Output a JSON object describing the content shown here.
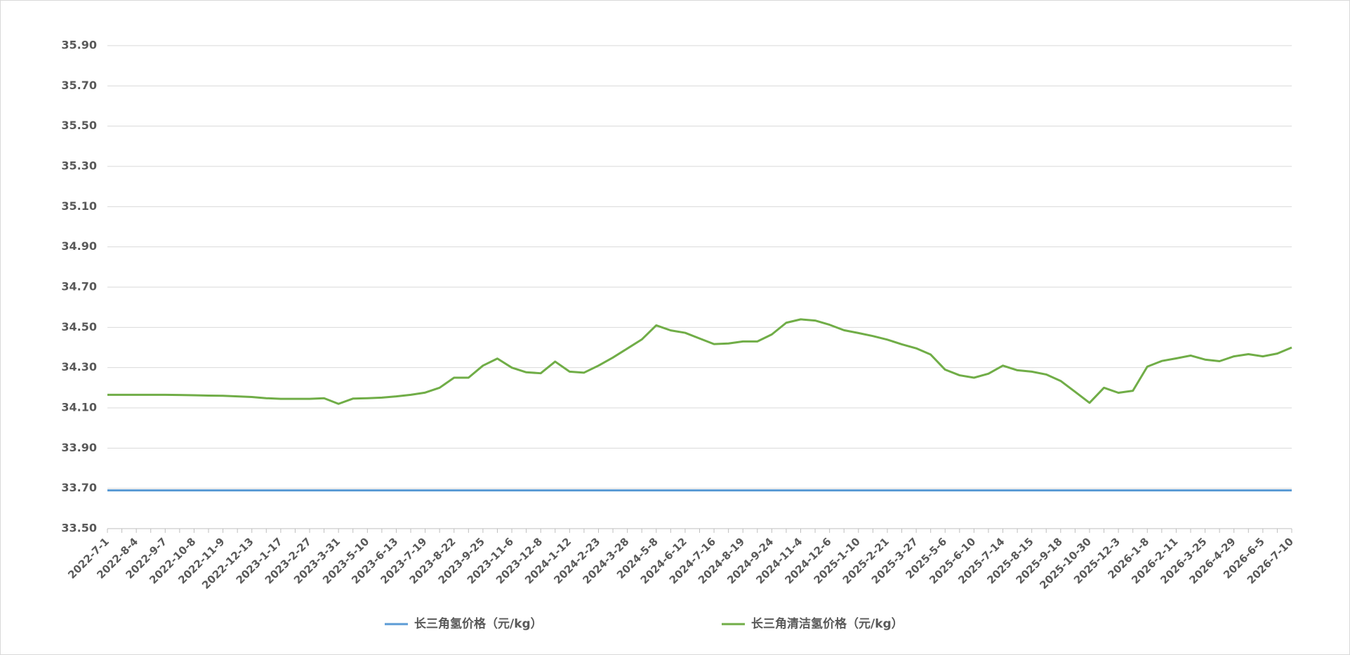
{
  "chart_data": {
    "type": "line",
    "categories": [
      "2022-7-1",
      null,
      "2022-8-4",
      null,
      "2022-9-7",
      null,
      "2022-10-8",
      null,
      "2022-11-9",
      null,
      "2022-12-13",
      null,
      "2023-1-17",
      null,
      "2023-2-27",
      null,
      "2023-3-31",
      null,
      "2023-5-10",
      null,
      "2023-6-13",
      null,
      "2023-7-19",
      null,
      "2023-8-22",
      null,
      "2023-9-25",
      null,
      "2023-11-6",
      null,
      "2023-12-8",
      null,
      "2024-1-12",
      null,
      "2024-2-23",
      null,
      "2024-3-28",
      null,
      "2024-5-8",
      null,
      "2024-6-12",
      null,
      "2024-7-16",
      null,
      "2024-8-19",
      null,
      "2024-9-24",
      null,
      "2024-11-4",
      null,
      "2024-12-6",
      null,
      "2025-1-10",
      null,
      "2025-2-21",
      null,
      "2025-3-27",
      null,
      "2025-5-6",
      null,
      "2025-6-10",
      null,
      "2025-7-14",
      null,
      "2025-8-15",
      null,
      "2025-9-18",
      null,
      "2025-10-30",
      null,
      "2025-12-3",
      null,
      "2026-1-8",
      null,
      "2026-2-11",
      null,
      "2026-3-25",
      null,
      "2026-4-29",
      null,
      "2026-6-5",
      null,
      "2026-7-10"
    ],
    "series": [
      {
        "name": "长三角氢价格（元/kg）",
        "color": "#5b9bd5",
        "values": [
          33.69,
          33.69,
          33.69,
          33.69,
          33.69,
          33.69,
          33.69,
          33.69,
          33.69,
          33.69,
          33.69,
          33.69,
          33.69,
          33.69,
          33.69,
          33.69,
          33.69,
          33.69,
          33.69,
          33.69,
          33.69,
          33.69,
          33.69,
          33.69,
          33.69,
          33.69,
          33.69,
          33.69,
          33.69,
          33.69,
          33.69,
          33.69,
          33.69,
          33.69,
          33.69,
          33.69,
          33.69,
          33.69,
          33.69,
          33.69,
          33.69,
          33.69,
          33.69,
          33.69,
          33.69,
          33.69,
          33.69,
          33.69,
          33.69,
          33.69,
          33.69,
          33.69,
          33.69,
          33.69,
          33.69,
          33.69,
          33.69,
          33.69,
          33.69,
          33.69,
          33.69,
          33.69,
          33.69,
          33.69,
          33.69,
          33.69,
          33.69,
          33.69,
          33.69,
          33.69,
          33.69,
          33.69,
          33.69,
          33.69,
          33.69,
          33.69,
          33.69,
          33.69,
          33.69,
          33.69,
          33.69,
          33.69,
          33.69
        ]
      },
      {
        "name": "长三角清洁氢价格（元/kg）",
        "color": "#70ad47",
        "values": [
          34.165,
          34.165,
          34.165,
          34.165,
          34.165,
          34.164,
          34.163,
          34.161,
          34.16,
          34.157,
          34.154,
          34.148,
          34.145,
          34.145,
          34.145,
          34.148,
          34.12,
          34.146,
          34.148,
          34.151,
          34.157,
          34.165,
          34.176,
          34.2,
          34.25,
          34.25,
          34.31,
          34.345,
          34.3,
          34.277,
          34.272,
          34.33,
          34.28,
          34.275,
          34.31,
          34.35,
          34.395,
          34.44,
          34.51,
          34.485,
          34.473,
          34.445,
          34.417,
          34.42,
          34.43,
          34.43,
          34.465,
          34.523,
          34.54,
          34.534,
          34.513,
          34.486,
          34.472,
          34.457,
          34.439,
          34.416,
          34.396,
          34.365,
          34.29,
          34.262,
          34.25,
          34.27,
          34.31,
          34.287,
          34.28,
          34.266,
          34.234,
          34.18,
          34.125,
          34.2,
          34.175,
          34.185,
          34.305,
          34.333,
          34.346,
          34.36,
          34.34,
          34.332,
          34.356,
          34.367,
          34.356,
          34.37,
          34.4
        ]
      }
    ],
    "ylim": [
      33.5,
      35.9
    ],
    "yticks": [
      {
        "value": 33.5,
        "label": "33.50"
      },
      {
        "value": 33.7,
        "label": "33.70"
      },
      {
        "value": 33.9,
        "label": "33.90"
      },
      {
        "value": 34.1,
        "label": "34.10"
      },
      {
        "value": 34.3,
        "label": "34.30"
      },
      {
        "value": 34.5,
        "label": "34.50"
      },
      {
        "value": 34.7,
        "label": "34.70"
      },
      {
        "value": 34.9,
        "label": "34.90"
      },
      {
        "value": 35.1,
        "label": "35.10"
      },
      {
        "value": 35.3,
        "label": "35.30"
      },
      {
        "value": 35.5,
        "label": "35.50"
      },
      {
        "value": 35.7,
        "label": "35.70"
      },
      {
        "value": 35.9,
        "label": "35.90"
      }
    ],
    "grid": true,
    "legend": "bottom"
  }
}
